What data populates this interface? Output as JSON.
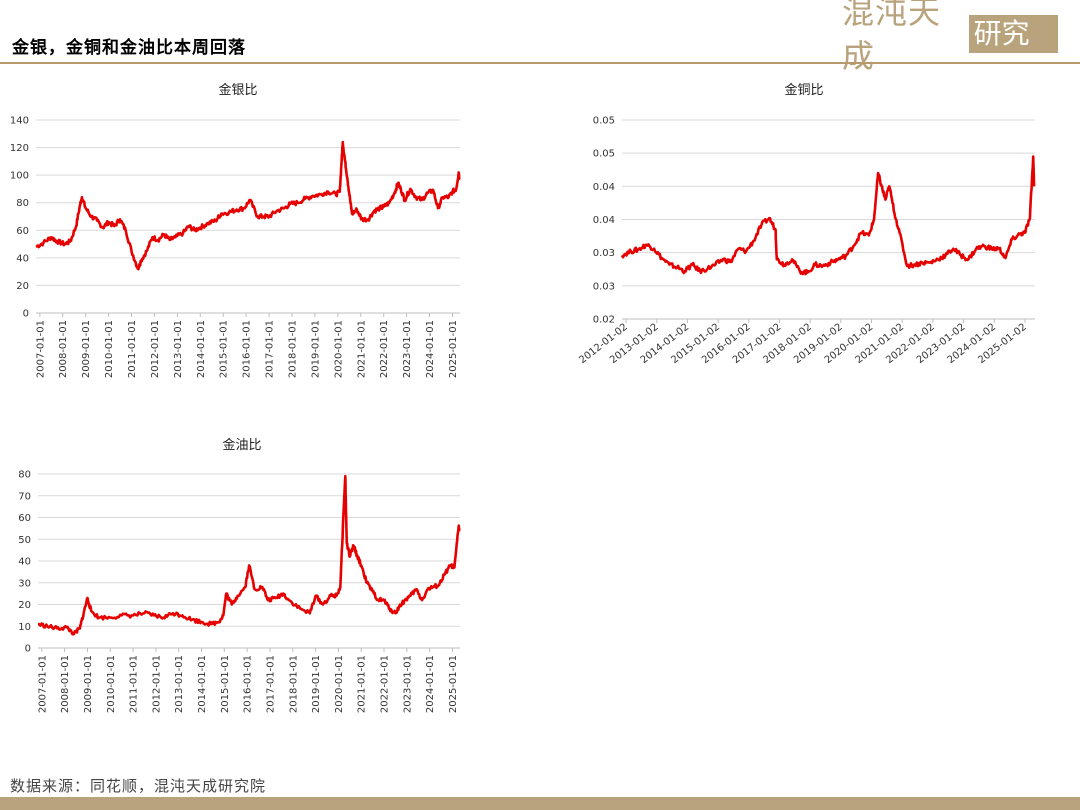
{
  "header": {
    "title": "金银，金铜和金油比本周回落"
  },
  "logo": {
    "text_left": "混沌天成",
    "text_right": "研究院"
  },
  "footer": {
    "source": "数据来源：同花顺，混沌天成研究院"
  },
  "colors": {
    "series": "#e60000",
    "brand": "#b8a37c"
  },
  "chart_data": [
    {
      "type": "line",
      "title": "金银比",
      "xlabel": "",
      "ylabel": "",
      "ylim": [
        0,
        140
      ],
      "yticks": [
        "0",
        "20",
        "40",
        "60",
        "80",
        "100",
        "120",
        "140"
      ],
      "xticks": [
        "2007-01-01",
        "2008-01-01",
        "2009-01-01",
        "2010-01-01",
        "2011-01-01",
        "2012-01-01",
        "2013-01-01",
        "2014-01-01",
        "2015-01-01",
        "2016-01-01",
        "2017-01-01",
        "2018-01-01",
        "2019-01-01",
        "2020-01-01",
        "2021-01-01",
        "2022-01-01",
        "2023-01-01",
        "2024-01-01",
        "2025-01-01"
      ],
      "xrange": [
        "2006-11-01",
        "2025-05-01"
      ],
      "grid": true,
      "series": [
        {
          "points": [
            [
              "2006-11-01",
              48
            ],
            [
              "2007-03-01",
              51
            ],
            [
              "2007-07-01",
              55
            ],
            [
              "2007-10-01",
              52
            ],
            [
              "2008-02-01",
              50
            ],
            [
              "2008-05-01",
              52
            ],
            [
              "2008-08-01",
              63
            ],
            [
              "2008-10-01",
              78
            ],
            [
              "2008-11-01",
              84
            ],
            [
              "2009-01-01",
              76
            ],
            [
              "2009-04-01",
              70
            ],
            [
              "2009-07-01",
              67
            ],
            [
              "2009-10-01",
              62
            ],
            [
              "2010-01-01",
              66
            ],
            [
              "2010-04-01",
              63
            ],
            [
              "2010-07-01",
              68
            ],
            [
              "2010-10-01",
              60
            ],
            [
              "2011-01-01",
              45
            ],
            [
              "2011-04-15",
              32
            ],
            [
              "2011-06-01",
              38
            ],
            [
              "2011-09-01",
              45
            ],
            [
              "2011-12-01",
              55
            ],
            [
              "2012-03-01",
              53
            ],
            [
              "2012-06-01",
              57
            ],
            [
              "2012-09-01",
              53
            ],
            [
              "2012-12-01",
              55
            ],
            [
              "2013-04-01",
              58
            ],
            [
              "2013-07-01",
              63
            ],
            [
              "2013-10-01",
              60
            ],
            [
              "2014-01-01",
              62
            ],
            [
              "2014-05-01",
              65
            ],
            [
              "2014-09-01",
              67
            ],
            [
              "2014-12-01",
              72
            ],
            [
              "2015-04-01",
              73
            ],
            [
              "2015-08-01",
              75
            ],
            [
              "2015-12-01",
              76
            ],
            [
              "2016-03-01",
              82
            ],
            [
              "2016-07-01",
              70
            ],
            [
              "2016-10-01",
              70
            ],
            [
              "2017-01-01",
              70
            ],
            [
              "2017-05-01",
              74
            ],
            [
              "2017-09-01",
              76
            ],
            [
              "2017-12-01",
              79
            ],
            [
              "2018-04-01",
              80
            ],
            [
              "2018-08-01",
              83
            ],
            [
              "2018-12-01",
              85
            ],
            [
              "2019-04-01",
              86
            ],
            [
              "2019-08-01",
              88
            ],
            [
              "2019-12-01",
              86
            ],
            [
              "2020-02-01",
              88
            ],
            [
              "2020-03-01",
              110
            ],
            [
              "2020-03-20",
              124
            ],
            [
              "2020-04-20",
              112
            ],
            [
              "2020-06-01",
              98
            ],
            [
              "2020-07-15",
              82
            ],
            [
              "2020-08-15",
              72
            ],
            [
              "2020-11-01",
              75
            ],
            [
              "2021-01-15",
              68
            ],
            [
              "2021-05-01",
              68
            ],
            [
              "2021-08-01",
              74
            ],
            [
              "2021-11-01",
              76
            ],
            [
              "2022-01-01",
              77
            ],
            [
              "2022-04-01",
              80
            ],
            [
              "2022-07-01",
              88
            ],
            [
              "2022-08-15",
              94
            ],
            [
              "2022-10-01",
              90
            ],
            [
              "2022-12-01",
              82
            ],
            [
              "2023-03-01",
              90
            ],
            [
              "2023-06-01",
              84
            ],
            [
              "2023-09-01",
              82
            ],
            [
              "2023-12-01",
              87
            ],
            [
              "2024-03-01",
              89
            ],
            [
              "2024-05-15",
              76
            ],
            [
              "2024-08-01",
              84
            ],
            [
              "2024-11-01",
              84
            ],
            [
              "2025-01-01",
              88
            ],
            [
              "2025-03-01",
              90
            ],
            [
              "2025-04-10",
              102
            ],
            [
              "2025-04-20",
              98
            ]
          ]
        }
      ]
    },
    {
      "type": "line",
      "title": "金铜比",
      "xlabel": "",
      "ylabel": "",
      "ylim": [
        0.02,
        0.05
      ],
      "yticks": [
        "0.02",
        "0.03",
        "0.03",
        "0.04",
        "0.04",
        "0.05",
        "0.05"
      ],
      "xticks": [
        "2012-01-02",
        "2013-01-02",
        "2014-01-02",
        "2015-01-02",
        "2016-01-02",
        "2017-01-02",
        "2018-01-02",
        "2019-01-02",
        "2020-01-02",
        "2021-01-02",
        "2022-01-02",
        "2023-01-02",
        "2024-01-02",
        "2025-01-02"
      ],
      "xrange": [
        "2011-11-15",
        "2025-05-01"
      ],
      "grid": true,
      "series": [
        {
          "points": [
            [
              "2011-11-15",
              0.0296
            ],
            [
              "2012-03-01",
              0.0302
            ],
            [
              "2012-06-01",
              0.0305
            ],
            [
              "2012-09-01",
              0.0312
            ],
            [
              "2012-12-01",
              0.0306
            ],
            [
              "2013-03-01",
              0.0292
            ],
            [
              "2013-06-01",
              0.0282
            ],
            [
              "2013-09-01",
              0.0278
            ],
            [
              "2013-12-01",
              0.0272
            ],
            [
              "2014-03-01",
              0.0282
            ],
            [
              "2014-06-01",
              0.0272
            ],
            [
              "2014-09-01",
              0.0276
            ],
            [
              "2014-12-01",
              0.0282
            ],
            [
              "2015-03-01",
              0.029
            ],
            [
              "2015-06-01",
              0.0286
            ],
            [
              "2015-09-01",
              0.0306
            ],
            [
              "2015-12-01",
              0.0302
            ],
            [
              "2016-03-01",
              0.0318
            ],
            [
              "2016-06-01",
              0.0342
            ],
            [
              "2016-09-01",
              0.0352
            ],
            [
              "2016-11-15",
              0.0335
            ],
            [
              "2016-12-01",
              0.029
            ],
            [
              "2017-03-01",
              0.0282
            ],
            [
              "2017-06-01",
              0.029
            ],
            [
              "2017-09-01",
              0.0272
            ],
            [
              "2017-12-01",
              0.027
            ],
            [
              "2018-03-01",
              0.0282
            ],
            [
              "2018-06-01",
              0.028
            ],
            [
              "2018-09-01",
              0.0285
            ],
            [
              "2018-12-01",
              0.029
            ],
            [
              "2019-03-01",
              0.0295
            ],
            [
              "2019-06-01",
              0.031
            ],
            [
              "2019-09-01",
              0.033
            ],
            [
              "2019-12-01",
              0.0326
            ],
            [
              "2020-02-01",
              0.035
            ],
            [
              "2020-03-20",
              0.042
            ],
            [
              "2020-05-01",
              0.04
            ],
            [
              "2020-06-15",
              0.038
            ],
            [
              "2020-08-01",
              0.04
            ],
            [
              "2020-10-01",
              0.036
            ],
            [
              "2020-12-01",
              0.033
            ],
            [
              "2021-03-01",
              0.028
            ],
            [
              "2021-06-01",
              0.0282
            ],
            [
              "2021-09-01",
              0.0285
            ],
            [
              "2021-12-01",
              0.0285
            ],
            [
              "2022-03-01",
              0.029
            ],
            [
              "2022-06-01",
              0.0296
            ],
            [
              "2022-09-01",
              0.0306
            ],
            [
              "2022-12-01",
              0.0296
            ],
            [
              "2023-03-01",
              0.029
            ],
            [
              "2023-06-01",
              0.0306
            ],
            [
              "2023-09-01",
              0.031
            ],
            [
              "2023-12-01",
              0.0306
            ],
            [
              "2024-03-01",
              0.0306
            ],
            [
              "2024-05-15",
              0.0292
            ],
            [
              "2024-08-01",
              0.032
            ],
            [
              "2024-11-01",
              0.0328
            ],
            [
              "2025-01-01",
              0.033
            ],
            [
              "2025-03-01",
              0.0352
            ],
            [
              "2025-04-10",
              0.0445
            ],
            [
              "2025-04-20",
              0.04
            ]
          ]
        }
      ]
    },
    {
      "type": "line",
      "title": "金油比",
      "xlabel": "",
      "ylabel": "",
      "ylim": [
        0,
        80
      ],
      "yticks": [
        "0",
        "10",
        "20",
        "30",
        "40",
        "50",
        "60",
        "70",
        "80"
      ],
      "xticks": [
        "2007-01-01",
        "2008-01-01",
        "2009-01-01",
        "2010-01-01",
        "2011-01-01",
        "2012-01-01",
        "2013-01-01",
        "2014-01-01",
        "2015-01-01",
        "2016-01-01",
        "2017-01-01",
        "2018-01-01",
        "2019-01-01",
        "2020-01-01",
        "2021-01-01",
        "2022-01-01",
        "2023-01-01",
        "2024-01-01",
        "2025-01-01"
      ],
      "xrange": [
        "2006-11-01",
        "2025-05-01"
      ],
      "grid": true,
      "series": [
        {
          "points": [
            [
              "2006-11-01",
              11
            ],
            [
              "2007-04-01",
              10
            ],
            [
              "2007-09-01",
              9
            ],
            [
              "2008-02-01",
              9.5
            ],
            [
              "2008-06-01",
              6.5
            ],
            [
              "2008-09-01",
              9
            ],
            [
              "2008-11-01",
              16
            ],
            [
              "2009-01-01",
              23
            ],
            [
              "2009-03-01",
              17
            ],
            [
              "2009-07-01",
              14
            ],
            [
              "2010-01-01",
              14
            ],
            [
              "2010-07-01",
              15
            ],
            [
              "2011-01-01",
              15
            ],
            [
              "2011-07-01",
              16
            ],
            [
              "2011-12-01",
              15
            ],
            [
              "2012-05-01",
              14
            ],
            [
              "2012-10-01",
              16
            ],
            [
              "2013-03-01",
              15
            ],
            [
              "2013-08-01",
              13
            ],
            [
              "2014-01-01",
              12
            ],
            [
              "2014-06-01",
              11
            ],
            [
              "2014-10-01",
              12
            ],
            [
              "2014-12-15",
              15
            ],
            [
              "2015-02-01",
              25
            ],
            [
              "2015-05-01",
              20
            ],
            [
              "2015-08-01",
              24
            ],
            [
              "2015-12-01",
              28
            ],
            [
              "2016-02-01",
              38
            ],
            [
              "2016-05-01",
              27
            ],
            [
              "2016-09-01",
              28
            ],
            [
              "2016-12-01",
              22
            ],
            [
              "2017-04-01",
              23
            ],
            [
              "2017-08-01",
              25
            ],
            [
              "2017-11-01",
              22
            ],
            [
              "2018-05-01",
              18
            ],
            [
              "2018-10-01",
              16
            ],
            [
              "2019-01-01",
              24
            ],
            [
              "2019-05-01",
              20
            ],
            [
              "2019-09-01",
              24
            ],
            [
              "2019-12-01",
              24
            ],
            [
              "2020-02-01",
              28
            ],
            [
              "2020-03-20",
              60
            ],
            [
              "2020-04-20",
              79
            ],
            [
              "2020-05-15",
              48
            ],
            [
              "2020-07-01",
              42
            ],
            [
              "2020-09-01",
              47
            ],
            [
              "2020-11-01",
              42
            ],
            [
              "2021-01-01",
              38
            ],
            [
              "2021-04-01",
              30
            ],
            [
              "2021-07-01",
              26
            ],
            [
              "2021-10-01",
              22
            ],
            [
              "2022-01-01",
              22
            ],
            [
              "2022-04-01",
              18
            ],
            [
              "2022-07-01",
              16
            ],
            [
              "2022-09-01",
              19
            ],
            [
              "2022-12-01",
              22
            ],
            [
              "2023-03-01",
              24
            ],
            [
              "2023-06-01",
              27
            ],
            [
              "2023-09-01",
              22
            ],
            [
              "2023-12-01",
              27
            ],
            [
              "2024-03-01",
              28
            ],
            [
              "2024-06-01",
              29
            ],
            [
              "2024-09-01",
              34
            ],
            [
              "2024-12-01",
              38
            ],
            [
              "2025-02-01",
              37
            ],
            [
              "2025-04-10",
              56
            ],
            [
              "2025-04-20",
              54
            ]
          ]
        }
      ]
    }
  ]
}
